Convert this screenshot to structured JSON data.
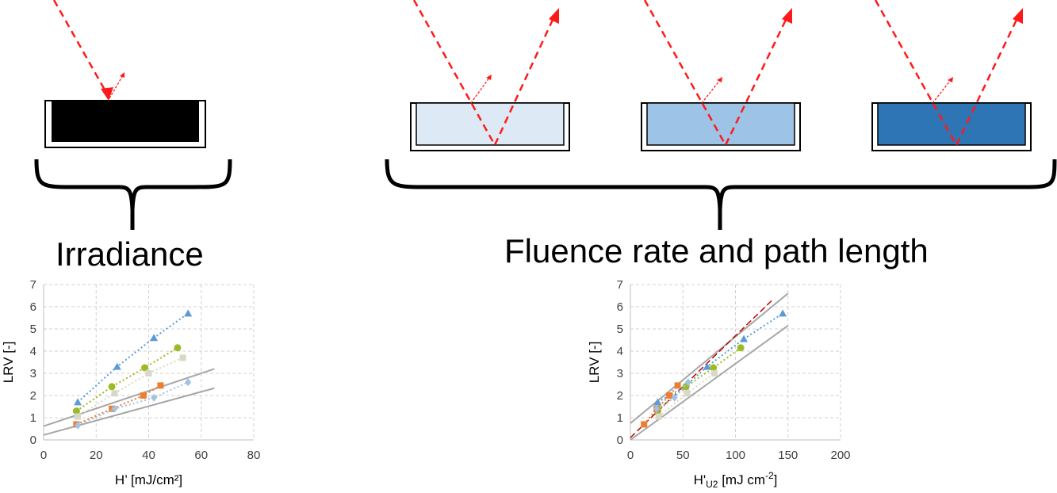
{
  "colors": {
    "ray": "#ff1a1a",
    "black_sample": "#000000",
    "light_blue": "#dde9f5",
    "mid_blue": "#9dc3e6",
    "dark_blue": "#2e75b6",
    "regression": "#a6a6a6",
    "grid": "#d0d0d0"
  },
  "labels": {
    "irradiance": "Irradiance",
    "fluence": "Fluence rate and path length"
  },
  "chart_data": [
    {
      "type": "scatter",
      "ylabel": "LRV [-]",
      "xlabel": "H’ [mJ/cm²]",
      "xlim": [
        0,
        80
      ],
      "ylim": [
        0,
        7
      ],
      "xticks": [
        "0",
        "20",
        "40",
        "60",
        "80"
      ],
      "yticks": [
        "0",
        "1",
        "2",
        "3",
        "4",
        "5",
        "6",
        "7"
      ],
      "grid": true,
      "series": [
        {
          "color": "#5b9bd5",
          "marker": "triangle",
          "x": [
            13,
            28,
            42,
            55
          ],
          "y": [
            1.7,
            3.3,
            4.6,
            5.7
          ]
        },
        {
          "color": "#9bbb25",
          "marker": "circle",
          "x": [
            12.5,
            26,
            38.5,
            51
          ],
          "y": [
            1.3,
            2.4,
            3.25,
            4.15
          ]
        },
        {
          "color": "#d8d8c8",
          "marker": "square",
          "x": [
            13,
            27,
            40,
            53
          ],
          "y": [
            1.05,
            2.1,
            3.0,
            3.7
          ]
        },
        {
          "color": "#ed7d31",
          "marker": "square",
          "x": [
            12.5,
            26,
            38,
            44.5
          ],
          "y": [
            0.7,
            1.4,
            2.0,
            2.45
          ]
        },
        {
          "color": "#9dc3e6",
          "marker": "diamond",
          "x": [
            13,
            27,
            42,
            55
          ],
          "y": [
            0.65,
            1.4,
            1.9,
            2.6
          ]
        }
      ],
      "regression_lines": [
        {
          "x": [
            0,
            65
          ],
          "y": [
            0.62,
            3.2
          ]
        },
        {
          "x": [
            0,
            65
          ],
          "y": [
            0.22,
            2.33
          ]
        }
      ]
    },
    {
      "type": "scatter",
      "ylabel": "LRV [-]",
      "xlabel_main": "H'",
      "xlabel_sub": "U2",
      "xlabel_rest": " [mJ cm",
      "xlabel_sup": "-2",
      "xlabel_end": "]",
      "xlim": [
        0,
        200
      ],
      "ylim": [
        0,
        7
      ],
      "xticks": [
        "0",
        "50",
        "100",
        "150",
        "200"
      ],
      "yticks": [
        "0",
        "1",
        "2",
        "3",
        "4",
        "5",
        "6",
        "7"
      ],
      "grid": true,
      "series": [
        {
          "color": "#5b9bd5",
          "marker": "triangle",
          "x": [
            26,
            52,
            73,
            108,
            145
          ],
          "y": [
            1.7,
            2.4,
            3.3,
            4.55,
            5.7
          ]
        },
        {
          "color": "#9bbb25",
          "marker": "circle",
          "x": [
            26,
            53,
            79,
            105
          ],
          "y": [
            1.3,
            2.4,
            3.25,
            4.15
          ]
        },
        {
          "color": "#d8d8c8",
          "marker": "square",
          "x": [
            27,
            54,
            80
          ],
          "y": [
            1.05,
            2.1,
            3.0
          ]
        },
        {
          "color": "#ed7d31",
          "marker": "square",
          "x": [
            13,
            25,
            37,
            45
          ],
          "y": [
            0.7,
            1.4,
            2.0,
            2.45
          ]
        },
        {
          "color": "#9dc3e6",
          "marker": "diamond",
          "x": [
            25,
            42,
            55
          ],
          "y": [
            1.4,
            1.9,
            2.6
          ]
        }
      ],
      "regression_lines": [
        {
          "x": [
            0,
            150
          ],
          "y": [
            0.75,
            6.6
          ]
        },
        {
          "x": [
            0,
            150
          ],
          "y": [
            0.0,
            5.15
          ]
        }
      ],
      "reference_line": {
        "x": [
          0,
          135
        ],
        "y": [
          0.1,
          6.3
        ],
        "color": "#c00000"
      }
    }
  ]
}
